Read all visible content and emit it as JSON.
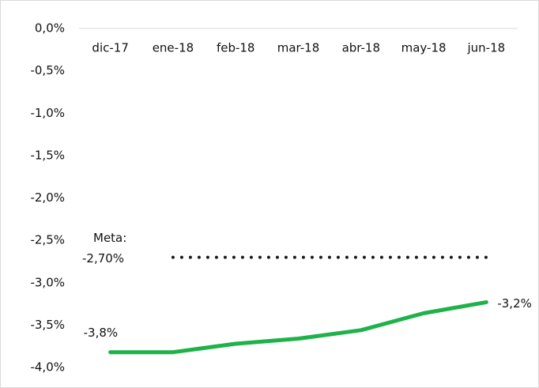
{
  "chart_data": {
    "type": "line",
    "categories": [
      "dic-17",
      "ene-18",
      "feb-18",
      "mar-18",
      "abr-18",
      "may-18",
      "jun-18"
    ],
    "series": [
      {
        "color": "#1fb24a",
        "values": [
          -3.82,
          -3.82,
          -3.72,
          -3.66,
          -3.56,
          -3.36,
          -3.23
        ],
        "value_labels": [
          "-3,8%",
          null,
          null,
          null,
          null,
          null,
          "-3,2%"
        ]
      },
      {
        "color": "#1a1a1a",
        "style": "dotted",
        "label": "Meta:",
        "value_label": "-2,70%",
        "values": [
          null,
          -2.7,
          -2.7,
          -2.7,
          -2.7,
          -2.7,
          -2.7
        ]
      }
    ],
    "ylim": [
      -4.0,
      0.0
    ],
    "yticks": [
      {
        "value": 0.0,
        "label": "0,0%"
      },
      {
        "value": -0.5,
        "label": "-0,5%"
      },
      {
        "value": -1.0,
        "label": "-1,0%"
      },
      {
        "value": -1.5,
        "label": "-1,5%"
      },
      {
        "value": -2.0,
        "label": "-2,0%"
      },
      {
        "value": -2.5,
        "label": "-2,5%"
      },
      {
        "value": -3.0,
        "label": "-3,0%"
      },
      {
        "value": -3.5,
        "label": "-3,5%"
      },
      {
        "value": -4.0,
        "label": "-4,0%"
      }
    ],
    "grid": false
  }
}
